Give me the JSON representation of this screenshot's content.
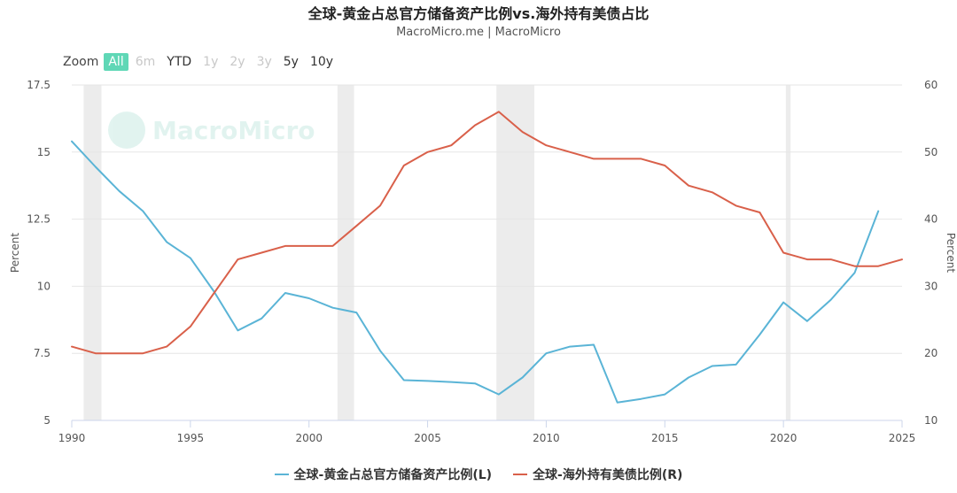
{
  "title": "全球-黄金占总官方储备资产比例vs.海外持有美债占比",
  "subtitle": "MacroMicro.me | MacroMicro",
  "zoom": {
    "label": "Zoom",
    "buttons": [
      {
        "label": "All",
        "state": "active"
      },
      {
        "label": "6m",
        "state": "disabled"
      },
      {
        "label": "YTD",
        "state": "enabled"
      },
      {
        "label": "1y",
        "state": "disabled"
      },
      {
        "label": "2y",
        "state": "disabled"
      },
      {
        "label": "3y",
        "state": "disabled"
      },
      {
        "label": "5y",
        "state": "enabled"
      },
      {
        "label": "10y",
        "state": "enabled"
      }
    ]
  },
  "watermark": "MacroMicro",
  "chart_data": {
    "type": "line",
    "xlim": [
      1990,
      2025
    ],
    "x_ticks": [
      "1990",
      "1995",
      "2000",
      "2005",
      "2010",
      "2015",
      "2020",
      "2025"
    ],
    "ylabel_left": "Percent",
    "ylabel_right": "Percent",
    "ylim_left": [
      5,
      17.5
    ],
    "y_ticks_left": [
      "5",
      "7.5",
      "10",
      "12.5",
      "15",
      "17.5"
    ],
    "ylim_right": [
      10,
      60
    ],
    "y_ticks_right": [
      "10",
      "20",
      "30",
      "40",
      "50",
      "60"
    ],
    "grid": true,
    "legend_position": "bottom-center",
    "shaded_periods": [
      [
        1990.5,
        1991.25
      ],
      [
        2001.2,
        2001.9
      ],
      [
        2007.9,
        2009.5
      ],
      [
        2020.1,
        2020.3
      ]
    ],
    "series": [
      {
        "name": "全球-黄金占总官方储备资产比例(L)",
        "axis": "left",
        "color": "#5ab4d6",
        "x": [
          1990,
          1991,
          1992,
          1993,
          1994,
          1995,
          1996,
          1997,
          1998,
          1999,
          2000,
          2001,
          2002,
          2003,
          2004,
          2005,
          2006,
          2007,
          2008,
          2009,
          2010,
          2011,
          2012,
          2013,
          2014,
          2015,
          2016,
          2017,
          2018,
          2019,
          2020,
          2021,
          2022,
          2023,
          2024
        ],
        "values": [
          15.4,
          14.45,
          13.55,
          12.8,
          11.65,
          11.05,
          9.8,
          8.35,
          8.8,
          9.75,
          9.55,
          9.2,
          9.02,
          7.6,
          6.5,
          6.47,
          6.43,
          6.38,
          5.97,
          6.6,
          7.5,
          7.75,
          7.82,
          5.67,
          5.8,
          5.97,
          6.6,
          7.03,
          7.08,
          8.2,
          9.4,
          8.7,
          9.5,
          10.5,
          12.8
        ]
      },
      {
        "name": "全球-海外持有美债比例(R)",
        "axis": "right",
        "color": "#d9604a",
        "x": [
          1990,
          1991,
          1992,
          1993,
          1994,
          1995,
          1996,
          1997,
          1998,
          1999,
          2000,
          2001,
          2002,
          2003,
          2004,
          2005,
          2006,
          2007,
          2008,
          2009,
          2010,
          2011,
          2012,
          2013,
          2014,
          2015,
          2016,
          2017,
          2018,
          2019,
          2020,
          2021,
          2022,
          2023,
          2024,
          2025
        ],
        "values": [
          21,
          20,
          20,
          20,
          21,
          24,
          29,
          34,
          35,
          36,
          36,
          36,
          39,
          42,
          48,
          50,
          51,
          54,
          56,
          53,
          51,
          50,
          49,
          49,
          49,
          48,
          45,
          44,
          42,
          41,
          35,
          34,
          34,
          33,
          33,
          34
        ]
      }
    ]
  }
}
